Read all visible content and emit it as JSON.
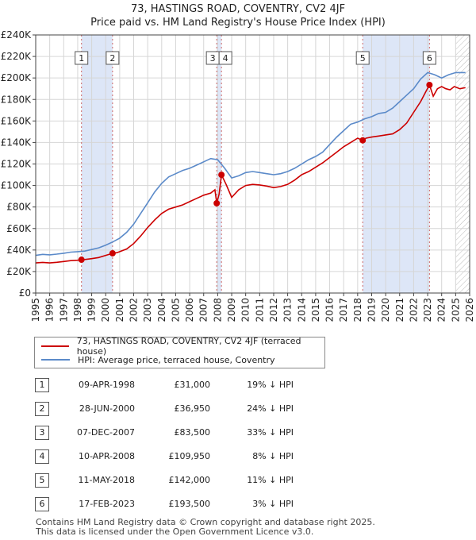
{
  "title_line1": "73, HASTINGS ROAD, COVENTRY, CV2 4JF",
  "title_line2": "Price paid vs. HM Land Registry's House Price Index (HPI)",
  "colors": {
    "red": "#cc0000",
    "blue": "#5b8ac9",
    "shade": "#dde6f7",
    "vline": "#cc6666",
    "grid": "#d6d6d6"
  },
  "chart_data": {
    "type": "line",
    "title": "73, HASTINGS ROAD, COVENTRY, CV2 4JF — Price paid vs. HM Land Registry's House Price Index (HPI)",
    "xlabel": "",
    "ylabel": "",
    "xlim": [
      1995,
      2026
    ],
    "ylim": [
      0,
      240000
    ],
    "y_ticks": [
      0,
      20000,
      40000,
      60000,
      80000,
      100000,
      120000,
      140000,
      160000,
      180000,
      200000,
      220000,
      240000
    ],
    "y_tick_labels": [
      "£0",
      "£20K",
      "£40K",
      "£60K",
      "£80K",
      "£100K",
      "£120K",
      "£140K",
      "£160K",
      "£180K",
      "£200K",
      "£220K",
      "£240K"
    ],
    "x_ticks": [
      1995,
      1996,
      1997,
      1998,
      1999,
      2000,
      2001,
      2002,
      2003,
      2004,
      2005,
      2006,
      2007,
      2008,
      2009,
      2010,
      2011,
      2012,
      2013,
      2014,
      2015,
      2016,
      2017,
      2018,
      2019,
      2020,
      2021,
      2022,
      2023,
      2024,
      2025,
      2026
    ],
    "x_tick_labels": [
      "1995",
      "1996",
      "1997",
      "1998",
      "1999",
      "2000",
      "2001",
      "2002",
      "2003",
      "2004",
      "2005",
      "2006",
      "2007",
      "2008",
      "2009",
      "2010",
      "2011",
      "2012",
      "2013",
      "2014",
      "2015",
      "2016",
      "2017",
      "2018",
      "2019",
      "2020",
      "2021",
      "2022",
      "2023",
      "2024",
      "2025",
      "2026"
    ],
    "shaded_ranges": [
      [
        1998.27,
        2000.49
      ],
      [
        2007.93,
        2008.27
      ],
      [
        2018.36,
        2023.13
      ]
    ],
    "future_hatch_from": 2025.0,
    "series": [
      {
        "name": "73, HASTINGS ROAD, COVENTRY, CV2 4JF (terraced house)",
        "color": "#cc0000",
        "x": [
          1995,
          1995.5,
          1996,
          1996.5,
          1997,
          1997.5,
          1998,
          1998.27,
          1998.5,
          1999,
          1999.5,
          2000,
          2000.49,
          2000.8,
          2001,
          2001.5,
          2002,
          2002.5,
          2003,
          2003.5,
          2004,
          2004.5,
          2005,
          2005.5,
          2006,
          2006.5,
          2007,
          2007.5,
          2007.8,
          2007.93,
          2008.1,
          2008.27,
          2008.6,
          2009,
          2009.5,
          2010,
          2010.5,
          2011,
          2011.5,
          2012,
          2012.5,
          2013,
          2013.5,
          2014,
          2014.5,
          2015,
          2015.5,
          2016,
          2016.5,
          2017,
          2017.5,
          2018,
          2018.36,
          2018.6,
          2019,
          2019.5,
          2020,
          2020.5,
          2021,
          2021.5,
          2022,
          2022.5,
          2022.9,
          2023.13,
          2023.4,
          2023.7,
          2024,
          2024.3,
          2024.6,
          2024.9,
          2025.3,
          2025.7
        ],
        "y": [
          28000,
          28500,
          28000,
          28600,
          29300,
          30100,
          30500,
          31000,
          31200,
          32000,
          33000,
          35000,
          36950,
          37500,
          38500,
          41000,
          46000,
          53000,
          61000,
          68000,
          74000,
          78000,
          80000,
          82000,
          85000,
          88000,
          91000,
          93000,
          96000,
          83500,
          92000,
          109950,
          101000,
          89000,
          96000,
          100000,
          101000,
          100500,
          99500,
          98000,
          99000,
          101000,
          105000,
          110000,
          113000,
          117000,
          121000,
          126000,
          131000,
          136000,
          140000,
          144000,
          142000,
          144000,
          145000,
          146000,
          147000,
          148000,
          152000,
          158000,
          168000,
          178000,
          188000,
          193500,
          183000,
          190000,
          192000,
          190000,
          189000,
          192000,
          190000,
          191000
        ]
      },
      {
        "name": "HPI: Average price, terraced house, Coventry",
        "color": "#5b8ac9",
        "x": [
          1995,
          1995.5,
          1996,
          1996.5,
          1997,
          1997.5,
          1998,
          1998.5,
          1999,
          1999.5,
          2000,
          2000.5,
          2001,
          2001.5,
          2002,
          2002.5,
          2003,
          2003.5,
          2004,
          2004.5,
          2005,
          2005.5,
          2006,
          2006.5,
          2007,
          2007.5,
          2008,
          2008.5,
          2009,
          2009.5,
          2010,
          2010.5,
          2011,
          2011.5,
          2012,
          2012.5,
          2013,
          2013.5,
          2014,
          2014.5,
          2015,
          2015.5,
          2016,
          2016.5,
          2017,
          2017.5,
          2018,
          2018.5,
          2019,
          2019.5,
          2020,
          2020.5,
          2021,
          2021.5,
          2022,
          2022.5,
          2023,
          2023.5,
          2024,
          2024.5,
          2025,
          2025.7
        ],
        "y": [
          35000,
          36000,
          35500,
          36200,
          37000,
          38000,
          38500,
          39000,
          40500,
          42000,
          44500,
          47500,
          51000,
          56500,
          64000,
          74000,
          84000,
          94000,
          102000,
          108000,
          111000,
          114000,
          116000,
          119000,
          122000,
          125000,
          124000,
          116000,
          107000,
          109000,
          112000,
          113000,
          112000,
          111000,
          110000,
          111000,
          113000,
          116000,
          120000,
          124000,
          127000,
          131000,
          138000,
          145000,
          151000,
          157000,
          159000,
          162000,
          164000,
          167000,
          168000,
          172000,
          178000,
          184000,
          190000,
          199000,
          205000,
          203000,
          200000,
          203000,
          205000,
          205000
        ]
      }
    ],
    "sale_points": [
      {
        "label": "1",
        "x": 1998.27,
        "y": 31000
      },
      {
        "label": "2",
        "x": 2000.49,
        "y": 36950
      },
      {
        "label": "3",
        "x": 2007.93,
        "y": 83500
      },
      {
        "label": "4",
        "x": 2008.27,
        "y": 109950
      },
      {
        "label": "5",
        "x": 2018.36,
        "y": 142000
      },
      {
        "label": "6",
        "x": 2023.13,
        "y": 193500
      }
    ]
  },
  "legend": {
    "red_label": "73, HASTINGS ROAD, COVENTRY, CV2 4JF (terraced house)",
    "blue_label": "HPI: Average price, terraced house, Coventry"
  },
  "transactions": [
    {
      "num": "1",
      "date": "09-APR-1998",
      "price": "£31,000",
      "hpi": "19% ↓ HPI"
    },
    {
      "num": "2",
      "date": "28-JUN-2000",
      "price": "£36,950",
      "hpi": "24% ↓ HPI"
    },
    {
      "num": "3",
      "date": "07-DEC-2007",
      "price": "£83,500",
      "hpi": "33% ↓ HPI"
    },
    {
      "num": "4",
      "date": "10-APR-2008",
      "price": "£109,950",
      "hpi": "8% ↓ HPI"
    },
    {
      "num": "5",
      "date": "11-MAY-2018",
      "price": "£142,000",
      "hpi": "11% ↓ HPI"
    },
    {
      "num": "6",
      "date": "17-FEB-2023",
      "price": "£193,500",
      "hpi": "3% ↓ HPI"
    }
  ],
  "footer": {
    "line1": "Contains HM Land Registry data © Crown copyright and database right 2025.",
    "line2": "This data is licensed under the Open Government Licence v3.0."
  }
}
